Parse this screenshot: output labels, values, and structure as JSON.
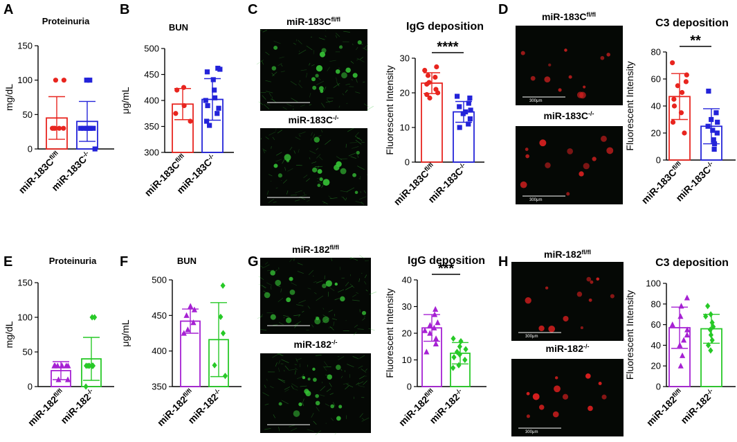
{
  "chart_data": [
    {
      "panel": "A",
      "type": "bar",
      "title": "Proteinuria",
      "ylabel": "mg/dL",
      "ylim": [
        0,
        150
      ],
      "yticks": [
        "0",
        "50",
        "100",
        "150"
      ],
      "categories": [
        {
          "base": "miR-183C",
          "sup": "fl/fl"
        },
        {
          "base": "miR-183C",
          "sup": "-/-"
        }
      ],
      "series": [
        {
          "color": "#e8251f",
          "marker": "circle",
          "mean": 45,
          "sd": 31,
          "points": [
            30,
            30,
            30,
            30,
            30,
            30,
            100,
            100
          ]
        },
        {
          "color": "#2323d9",
          "marker": "square",
          "mean": 40,
          "sd": 29,
          "points": [
            30,
            30,
            30,
            30,
            30,
            30,
            100,
            100,
            0
          ]
        }
      ]
    },
    {
      "panel": "B",
      "type": "bar",
      "title": "BUN",
      "ylabel": "μg/mL",
      "ylim": [
        300,
        500
      ],
      "yticks": [
        "300",
        "350",
        "400",
        "450",
        "500"
      ],
      "categories": [
        {
          "base": "miR-183C",
          "sup": "fl/fl"
        },
        {
          "base": "miR-183C",
          "sup": "-/-"
        }
      ],
      "series": [
        {
          "color": "#e8251f",
          "marker": "circle",
          "mean": 393,
          "sd": 30,
          "points": [
            425,
            420,
            390,
            375,
            360
          ]
        },
        {
          "color": "#2323d9",
          "marker": "square",
          "mean": 402,
          "sd": 40,
          "points": [
            462,
            460,
            455,
            440,
            420,
            405,
            400,
            390,
            385,
            375,
            360,
            352
          ]
        }
      ]
    },
    {
      "panel": "C",
      "type": "bar",
      "title": "IgG deposition",
      "ylabel": "Fluorescent Intensity",
      "ylim": [
        0,
        30
      ],
      "yticks": [
        "0",
        "10",
        "20",
        "30"
      ],
      "significance": "****",
      "categories": [
        {
          "base": "miR-183C",
          "sup": "fl/fl"
        },
        {
          "base": "miR-183C",
          "sup": "-/-"
        }
      ],
      "series": [
        {
          "color": "#e8251f",
          "marker": "circle",
          "mean": 22.8,
          "sd": 3.0,
          "points": [
            27.5,
            26.5,
            25.0,
            24.5,
            23.0,
            22.5,
            21.0,
            20.0,
            19.5,
            18.5
          ]
        },
        {
          "color": "#2323d9",
          "marker": "square",
          "mean": 14.5,
          "sd": 3.0,
          "points": [
            19.0,
            18.5,
            17.0,
            16.0,
            15.0,
            14.5,
            14.0,
            12.5,
            11.0,
            10.0
          ]
        }
      ]
    },
    {
      "panel": "D",
      "type": "bar",
      "title": "C3 deposition",
      "ylabel": "Fluorescent Intensity",
      "ylim": [
        0,
        80
      ],
      "yticks": [
        "0",
        "20",
        "40",
        "60",
        "80"
      ],
      "significance": "**",
      "categories": [
        {
          "base": "miR-183C",
          "sup": "fl/fl"
        },
        {
          "base": "miR-183C",
          "sup": "-/-"
        }
      ],
      "series": [
        {
          "color": "#e8251f",
          "marker": "circle",
          "mean": 47,
          "sd": 17,
          "points": [
            72,
            63,
            58,
            55,
            50,
            45,
            40,
            35,
            28,
            20
          ]
        },
        {
          "color": "#2323d9",
          "marker": "square",
          "mean": 25,
          "sd": 13,
          "points": [
            51,
            35,
            30,
            28,
            25,
            22,
            20,
            15,
            12,
            8
          ]
        }
      ]
    },
    {
      "panel": "E",
      "type": "bar",
      "title": "Proteinuria",
      "ylabel": "mg/dL",
      "ylim": [
        0,
        150
      ],
      "yticks": [
        "0",
        "50",
        "100",
        "150"
      ],
      "categories": [
        {
          "base": "miR-182",
          "sup": "fl/fl"
        },
        {
          "base": "miR-182",
          "sup": "-/-"
        }
      ],
      "series": [
        {
          "color": "#a621d3",
          "marker": "triangle",
          "mean": 23,
          "sd": 13,
          "points": [
            30,
            30,
            30,
            30,
            30,
            30,
            30,
            10,
            10
          ]
        },
        {
          "color": "#27c927",
          "marker": "diamond",
          "mean": 40,
          "sd": 31,
          "points": [
            100,
            100,
            30,
            30,
            30,
            30,
            30,
            30,
            30,
            0
          ]
        }
      ]
    },
    {
      "panel": "F",
      "type": "bar",
      "title": "BUN",
      "ylabel": "μg/mL",
      "ylim": [
        350,
        500
      ],
      "yticks": [
        "350",
        "400",
        "450",
        "500"
      ],
      "categories": [
        {
          "base": "miR-182",
          "sup": "fl/fl"
        },
        {
          "base": "miR-182",
          "sup": "-/-"
        }
      ],
      "series": [
        {
          "color": "#a621d3",
          "marker": "triangle",
          "mean": 442,
          "sd": 17,
          "points": [
            463,
            458,
            450,
            440,
            430,
            425
          ]
        },
        {
          "color": "#27c927",
          "marker": "diamond",
          "mean": 416,
          "sd": 52,
          "points": [
            492,
            448,
            425,
            380,
            365
          ]
        }
      ]
    },
    {
      "panel": "G",
      "type": "bar",
      "title": "IgG deposition",
      "ylabel": "Fluorescent Intensity",
      "ylim": [
        0,
        40
      ],
      "yticks": [
        "0",
        "10",
        "20",
        "30",
        "40"
      ],
      "significance": "***",
      "categories": [
        {
          "base": "miR-182",
          "sup": "fl/fl"
        },
        {
          "base": "miR-182",
          "sup": "-/-"
        }
      ],
      "series": [
        {
          "color": "#a621d3",
          "marker": "triangle",
          "mean": 22,
          "sd": 5,
          "points": [
            29,
            27,
            24,
            23,
            22,
            21,
            20,
            18,
            16,
            13
          ]
        },
        {
          "color": "#27c927",
          "marker": "diamond",
          "mean": 12.5,
          "sd": 4,
          "points": [
            18,
            17,
            15,
            14,
            13,
            12,
            11,
            10,
            8,
            7
          ]
        }
      ]
    },
    {
      "panel": "H",
      "type": "bar",
      "title": "C3 deposition",
      "ylabel": "Fluorescent Intensity",
      "ylim": [
        0,
        100
      ],
      "yticks": [
        "0",
        "20",
        "40",
        "60",
        "80",
        "100"
      ],
      "categories": [
        {
          "base": "miR-182",
          "sup": "fl/fl"
        },
        {
          "base": "miR-182",
          "sup": "-/-"
        }
      ],
      "series": [
        {
          "color": "#a621d3",
          "marker": "triangle",
          "mean": 57,
          "sd": 20,
          "points": [
            86,
            78,
            68,
            60,
            55,
            50,
            45,
            40,
            30,
            20
          ]
        },
        {
          "color": "#27c927",
          "marker": "diamond",
          "mean": 56,
          "sd": 14,
          "points": [
            78,
            70,
            68,
            62,
            58,
            55,
            50,
            45,
            40,
            35
          ]
        }
      ]
    }
  ],
  "images": [
    {
      "panel": "C",
      "label": {
        "base": "miR-183C",
        "sup": "fl/fl"
      },
      "color": "#35c035",
      "scale_text": ""
    },
    {
      "panel": "C",
      "label": {
        "base": "miR-183C",
        "sup": "-/-"
      },
      "color": "#35c035",
      "scale_text": ""
    },
    {
      "panel": "D",
      "label": {
        "base": "miR-183C",
        "sup": "fl/fl"
      },
      "color": "#d42020",
      "scale_text": "300μm"
    },
    {
      "panel": "D",
      "label": {
        "base": "miR-183C",
        "sup": "-/-"
      },
      "color": "#d42020",
      "scale_text": "300μm"
    },
    {
      "panel": "G",
      "label": {
        "base": "miR-182",
        "sup": "fl/fl"
      },
      "color": "#35c035",
      "scale_text": ""
    },
    {
      "panel": "G",
      "label": {
        "base": "miR-182",
        "sup": "-/-"
      },
      "color": "#35c035",
      "scale_text": ""
    },
    {
      "panel": "H",
      "label": {
        "base": "miR-182",
        "sup": "fl/fl"
      },
      "color": "#e02020",
      "scale_text": "300μm"
    },
    {
      "panel": "H",
      "label": {
        "base": "miR-182",
        "sup": "-/-"
      },
      "color": "#e02020",
      "scale_text": "300μm"
    }
  ]
}
